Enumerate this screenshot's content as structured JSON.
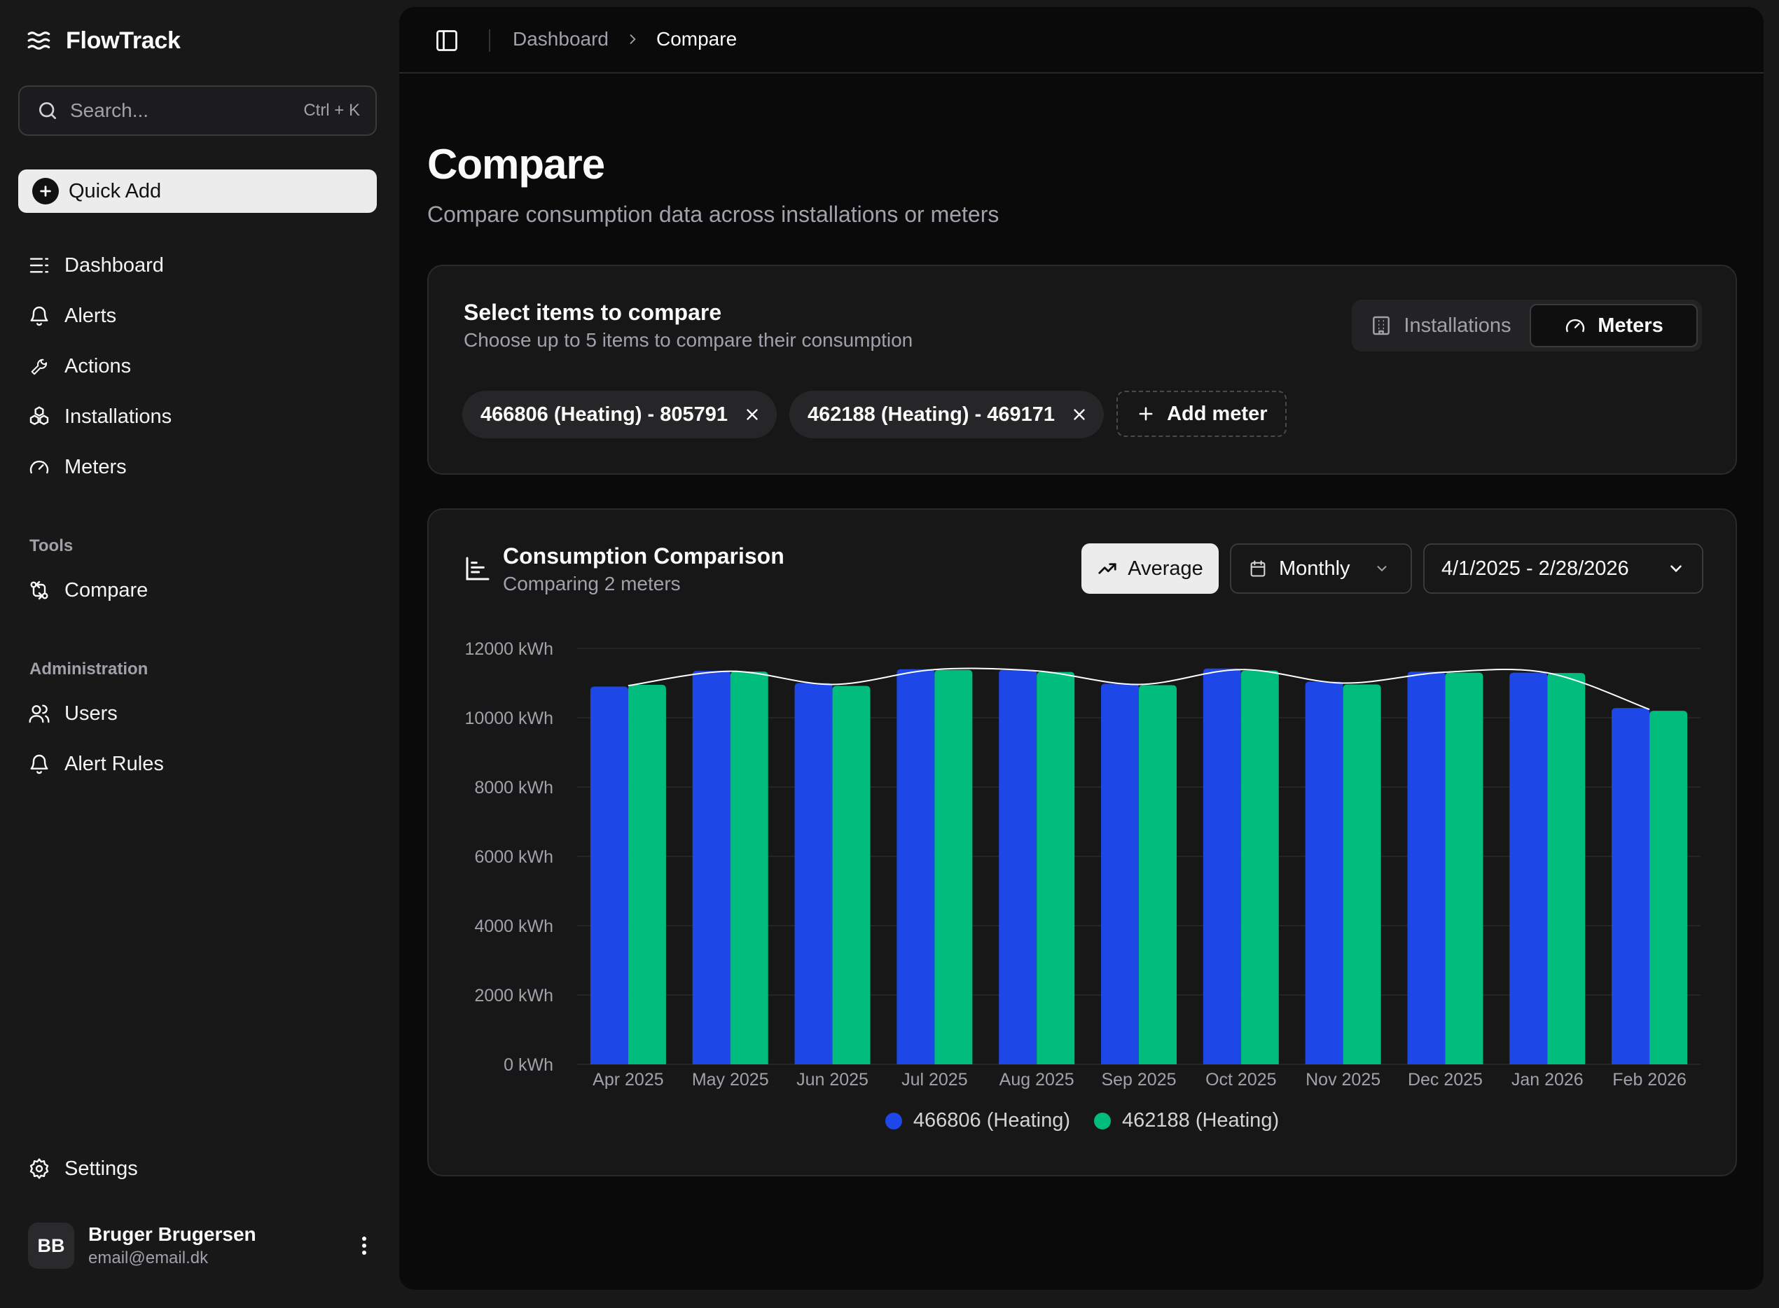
{
  "app": {
    "name": "FlowTrack"
  },
  "search": {
    "placeholder": "Search...",
    "shortcut": "Ctrl + K"
  },
  "quick_add": {
    "label": "Quick Add"
  },
  "nav": {
    "main": [
      {
        "label": "Dashboard",
        "icon": "list-icon"
      },
      {
        "label": "Alerts",
        "icon": "bell-icon"
      },
      {
        "label": "Actions",
        "icon": "wrench-icon"
      },
      {
        "label": "Installations",
        "icon": "boxes-icon"
      },
      {
        "label": "Meters",
        "icon": "gauge-icon"
      }
    ],
    "tools_label": "Tools",
    "tools": [
      {
        "label": "Compare",
        "icon": "compare-icon"
      }
    ],
    "admin_label": "Administration",
    "admin": [
      {
        "label": "Users",
        "icon": "users-icon"
      },
      {
        "label": "Alert Rules",
        "icon": "bell-icon"
      }
    ],
    "settings": {
      "label": "Settings",
      "icon": "gear-icon"
    }
  },
  "user": {
    "initials": "BB",
    "name": "Bruger Brugersen",
    "email": "email@email.dk"
  },
  "breadcrumb": {
    "parent": "Dashboard",
    "current": "Compare"
  },
  "page": {
    "title": "Compare",
    "subtitle": "Compare consumption data across installations or meters"
  },
  "select_card": {
    "title": "Select items to compare",
    "subtitle": "Choose up to 5 items to compare their consumption",
    "toggle": {
      "installations": "Installations",
      "meters": "Meters",
      "active": "meters"
    },
    "chips": [
      {
        "label": "466806 (Heating) - 805791"
      },
      {
        "label": "462188 (Heating) - 469171"
      }
    ],
    "add_label": "Add meter"
  },
  "chart_card": {
    "title": "Consumption Comparison",
    "subtitle": "Comparing 2 meters",
    "average_label": "Average",
    "interval_label": "Monthly",
    "range_label": "4/1/2025 - 2/28/2026"
  },
  "chart_data": {
    "type": "bar",
    "categories": [
      "Apr 2025",
      "May 2025",
      "Jun 2025",
      "Jul 2025",
      "Aug 2025",
      "Sep 2025",
      "Oct 2025",
      "Nov 2025",
      "Dec 2025",
      "Jan 2026",
      "Feb 2026"
    ],
    "series": [
      {
        "name": "466806 (Heating)",
        "color": "#1d47e6",
        "values": [
          10900,
          11350,
          11000,
          11400,
          11380,
          10980,
          11420,
          11040,
          11330,
          11300,
          10280
        ]
      },
      {
        "name": "462188 (Heating)",
        "color": "#00bd7e",
        "values": [
          10950,
          11330,
          10920,
          11380,
          11320,
          10940,
          11360,
          10960,
          11300,
          11290,
          10200
        ]
      }
    ],
    "average_line": {
      "color": "#ffffff",
      "values": [
        10925,
        11340,
        10960,
        11390,
        11350,
        10960,
        11390,
        11000,
        11315,
        11295,
        10240
      ]
    },
    "yticks": [
      "0 kWh",
      "2000 kWh",
      "4000 kWh",
      "6000 kWh",
      "8000 kWh",
      "10000 kWh",
      "12000 kWh"
    ],
    "ylim": [
      0,
      12000
    ],
    "grid": true,
    "legend": "bottom-center",
    "title": "",
    "xlabel": "",
    "ylabel": ""
  }
}
